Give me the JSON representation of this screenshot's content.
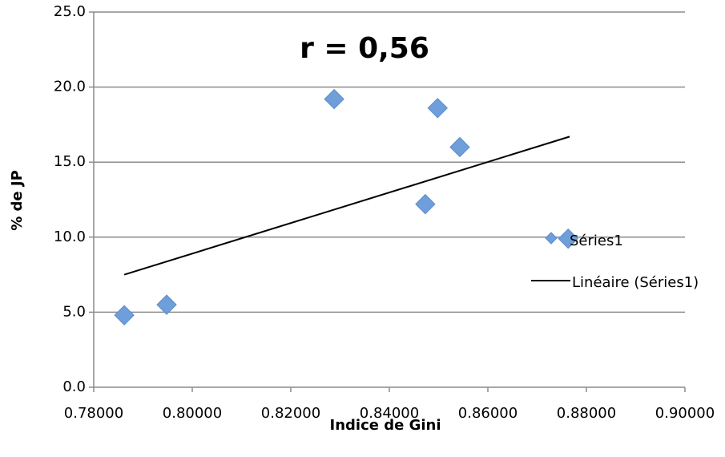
{
  "chart_data": {
    "type": "scatter",
    "annotation": "r = 0,56",
    "xlabel": "Indice de Gini",
    "ylabel": "% de JP",
    "series": [
      {
        "name": "Séries1",
        "color": "#6f9fdb",
        "x": [
          0.7862,
          0.7948,
          0.8288,
          0.8498,
          0.8543,
          0.8473,
          0.8763
        ],
        "values": [
          4.8,
          5.5,
          19.2,
          18.6,
          16.0,
          12.2,
          9.9
        ]
      }
    ],
    "trendline": {
      "name": "Linéaire (Séries1)",
      "color": "#000000",
      "x": [
        0.7862,
        0.8766
      ],
      "values": [
        7.5,
        16.7
      ]
    },
    "xlim": [
      0.78,
      0.9
    ],
    "xticks": [
      {
        "value": 0.78,
        "label": "0.78000"
      },
      {
        "value": 0.8,
        "label": "0.80000"
      },
      {
        "value": 0.82,
        "label": "0.82000"
      },
      {
        "value": 0.84,
        "label": "0.84000"
      },
      {
        "value": 0.86,
        "label": "0.86000"
      },
      {
        "value": 0.88,
        "label": "0.88000"
      },
      {
        "value": 0.9,
        "label": "0.90000"
      }
    ],
    "ylim": [
      0,
      25
    ],
    "yticks": [
      {
        "value": 0,
        "label": "0.0"
      },
      {
        "value": 5,
        "label": "5.0"
      },
      {
        "value": 10,
        "label": "10.0"
      },
      {
        "value": 15,
        "label": "15.0"
      },
      {
        "value": 20,
        "label": "20.0"
      },
      {
        "value": 25,
        "label": "25.0"
      }
    ],
    "grid": true
  }
}
